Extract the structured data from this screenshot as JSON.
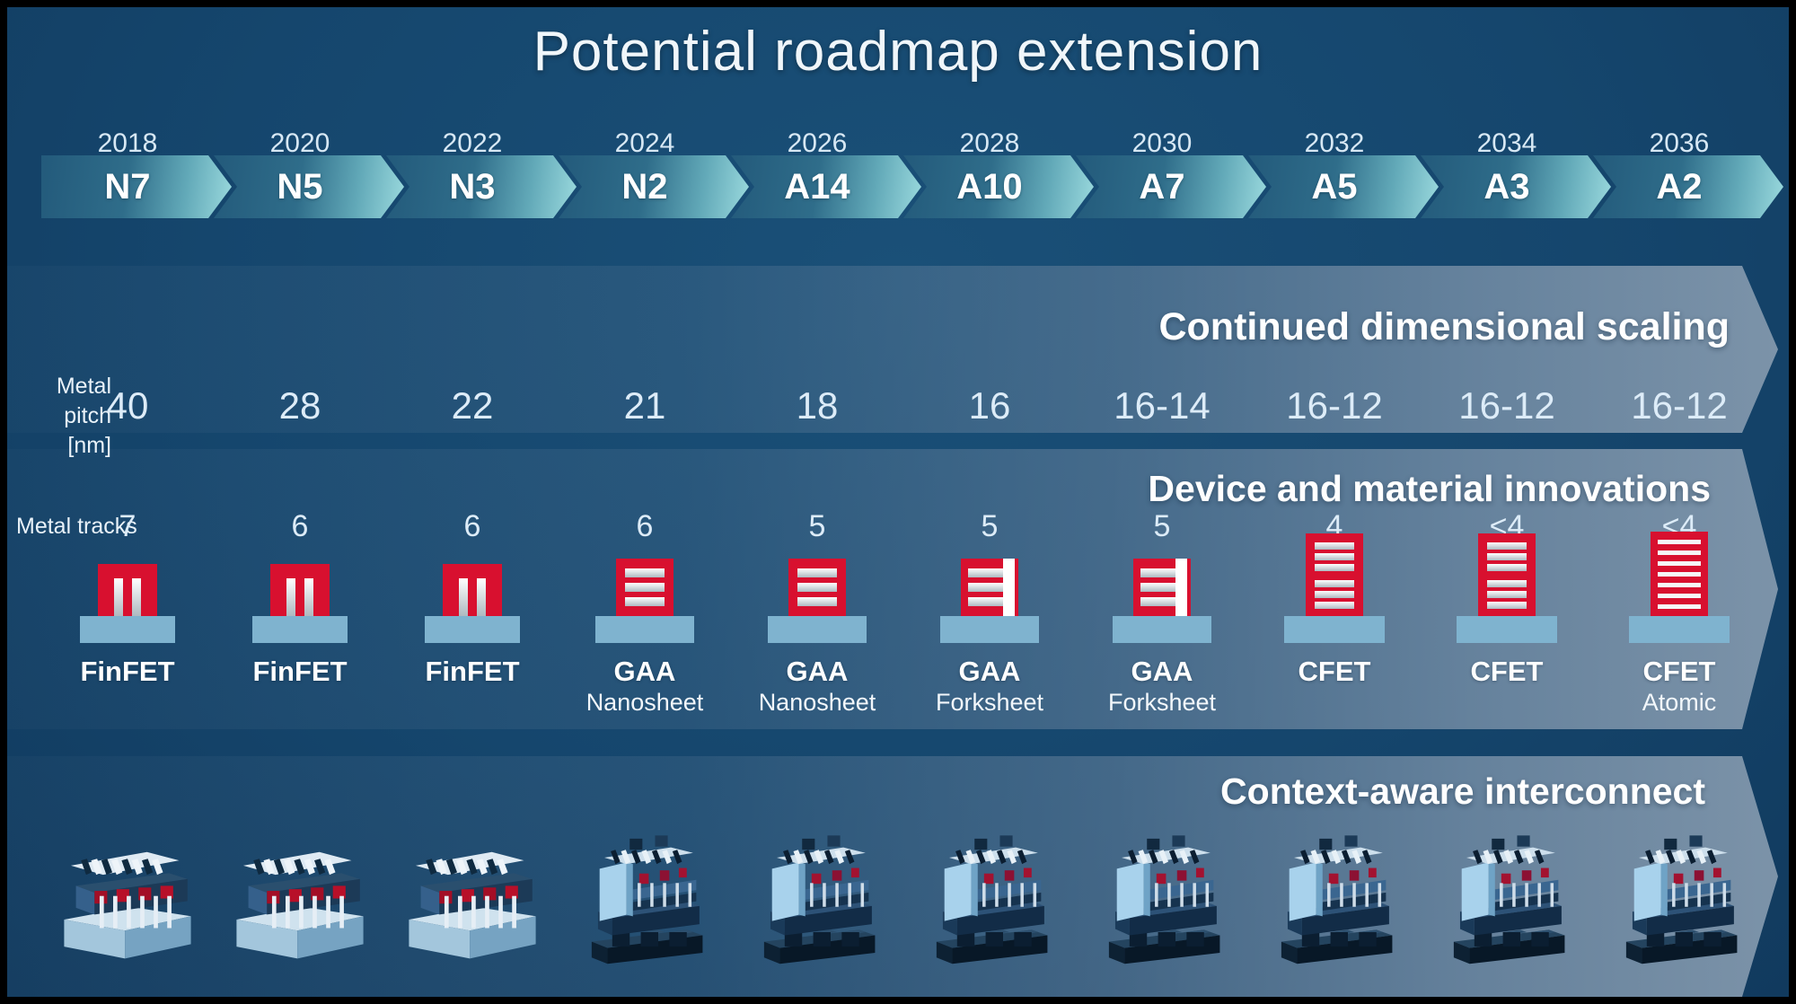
{
  "title": "Potential roadmap extension",
  "colors": {
    "background": "#15466d",
    "band_gray_blue": "#7b93ac",
    "arrow_dark_teal": "#235a7b",
    "arrow_light_teal": "#9bdade",
    "device_red": "#d8102f",
    "device_base_blue": "#7fb3cf",
    "text_white": "#ffffff"
  },
  "rows": {
    "metal_pitch_label1": "Metal pitch",
    "metal_pitch_label2": "[nm]",
    "metal_tracks_label": "Metal tracks"
  },
  "bands": [
    {
      "heading": "Continued dimensional scaling"
    },
    {
      "heading": "Device and material innovations"
    },
    {
      "heading": "Context-aware interconnect"
    }
  ],
  "timeline": {
    "columns": [
      {
        "year": "2018",
        "node": "N7",
        "metal_pitch": "40",
        "metal_tracks": "7",
        "device": {
          "label": "FinFET",
          "sublabel": "",
          "icon": "finfet"
        },
        "interconnect": "finfet-3d"
      },
      {
        "year": "2020",
        "node": "N5",
        "metal_pitch": "28",
        "metal_tracks": "6",
        "device": {
          "label": "FinFET",
          "sublabel": "",
          "icon": "finfet"
        },
        "interconnect": "finfet-3d"
      },
      {
        "year": "2022",
        "node": "N3",
        "metal_pitch": "22",
        "metal_tracks": "6",
        "device": {
          "label": "FinFET",
          "sublabel": "",
          "icon": "finfet"
        },
        "interconnect": "finfet-3d"
      },
      {
        "year": "2024",
        "node": "N2",
        "metal_pitch": "21",
        "metal_tracks": "6",
        "device": {
          "label": "GAA",
          "sublabel": "Nanosheet",
          "icon": "gaa-nanosheet"
        },
        "interconnect": "stacked-3d"
      },
      {
        "year": "2026",
        "node": "A14",
        "metal_pitch": "18",
        "metal_tracks": "5",
        "device": {
          "label": "GAA",
          "sublabel": "Nanosheet",
          "icon": "gaa-nanosheet"
        },
        "interconnect": "stacked-3d"
      },
      {
        "year": "2028",
        "node": "A10",
        "metal_pitch": "16",
        "metal_tracks": "5",
        "device": {
          "label": "GAA",
          "sublabel": "Forksheet",
          "icon": "gaa-forksheet"
        },
        "interconnect": "stacked-3d"
      },
      {
        "year": "2030",
        "node": "A7",
        "metal_pitch": "16-14",
        "metal_tracks": "5",
        "device": {
          "label": "GAA",
          "sublabel": "Forksheet",
          "icon": "gaa-forksheet"
        },
        "interconnect": "stacked-3d"
      },
      {
        "year": "2032",
        "node": "A5",
        "metal_pitch": "16-12",
        "metal_tracks": "4",
        "device": {
          "label": "CFET",
          "sublabel": "",
          "icon": "cfet"
        },
        "interconnect": "stacked-3d"
      },
      {
        "year": "2034",
        "node": "A3",
        "metal_pitch": "16-12",
        "metal_tracks": "<4",
        "device": {
          "label": "CFET",
          "sublabel": "",
          "icon": "cfet"
        },
        "interconnect": "stacked-3d"
      },
      {
        "year": "2036",
        "node": "A2",
        "metal_pitch": "16-12",
        "metal_tracks": "<4",
        "device": {
          "label": "CFET",
          "sublabel": "Atomic",
          "icon": "cfet-atomic"
        },
        "interconnect": "stacked-3d"
      }
    ]
  }
}
